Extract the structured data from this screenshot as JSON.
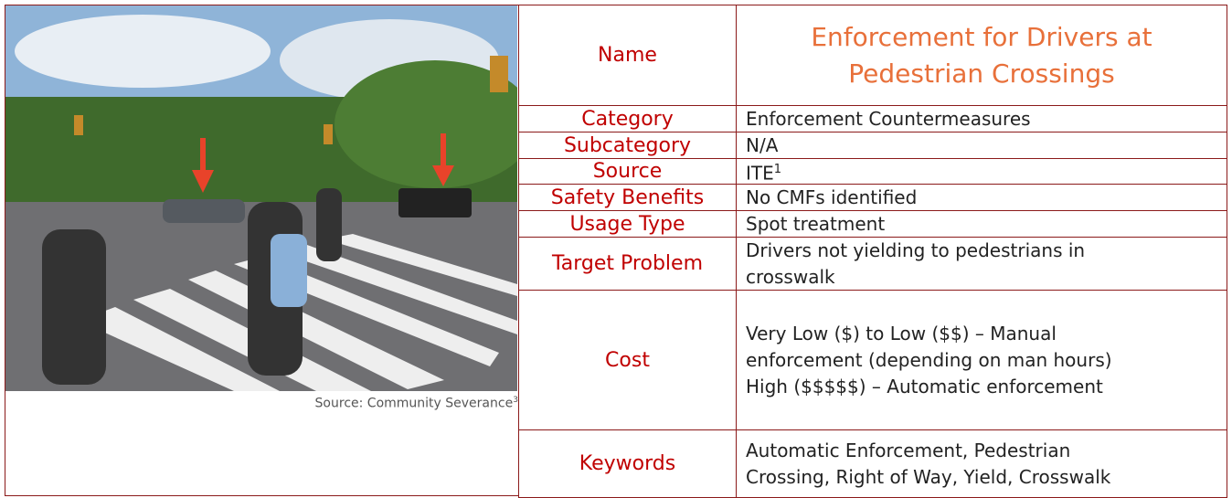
{
  "figure": {
    "caption": "Source: Community Severance",
    "caption_sup": "3"
  },
  "table": {
    "rows": [
      {
        "label": "Name",
        "value": [
          "Enforcement for Drivers at",
          "Pedestrian Crossings"
        ]
      },
      {
        "label": "Category",
        "value": [
          "Enforcement Countermeasures"
        ]
      },
      {
        "label": "Subcategory",
        "value": [
          "N/A"
        ]
      },
      {
        "label": "Source",
        "value": [
          "ITE"
        ],
        "sup": "1"
      },
      {
        "label": "Safety Benefits",
        "value": [
          "No CMFs identified"
        ]
      },
      {
        "label": "Usage Type",
        "value": [
          "Spot treatment"
        ]
      },
      {
        "label": "Target Problem",
        "value": [
          "Drivers not yielding to pedestrians in",
          "crosswalk"
        ]
      },
      {
        "label": "Cost",
        "value": [
          "Very Low ($) to Low ($$) – Manual",
          "enforcement (depending on man hours)",
          "High ($$$$$) – Automatic enforcement"
        ]
      },
      {
        "label": "Keywords",
        "value": [
          "Automatic Enforcement, Pedestrian",
          "Crossing, Right of Way, Yield, Crosswalk"
        ]
      }
    ]
  }
}
